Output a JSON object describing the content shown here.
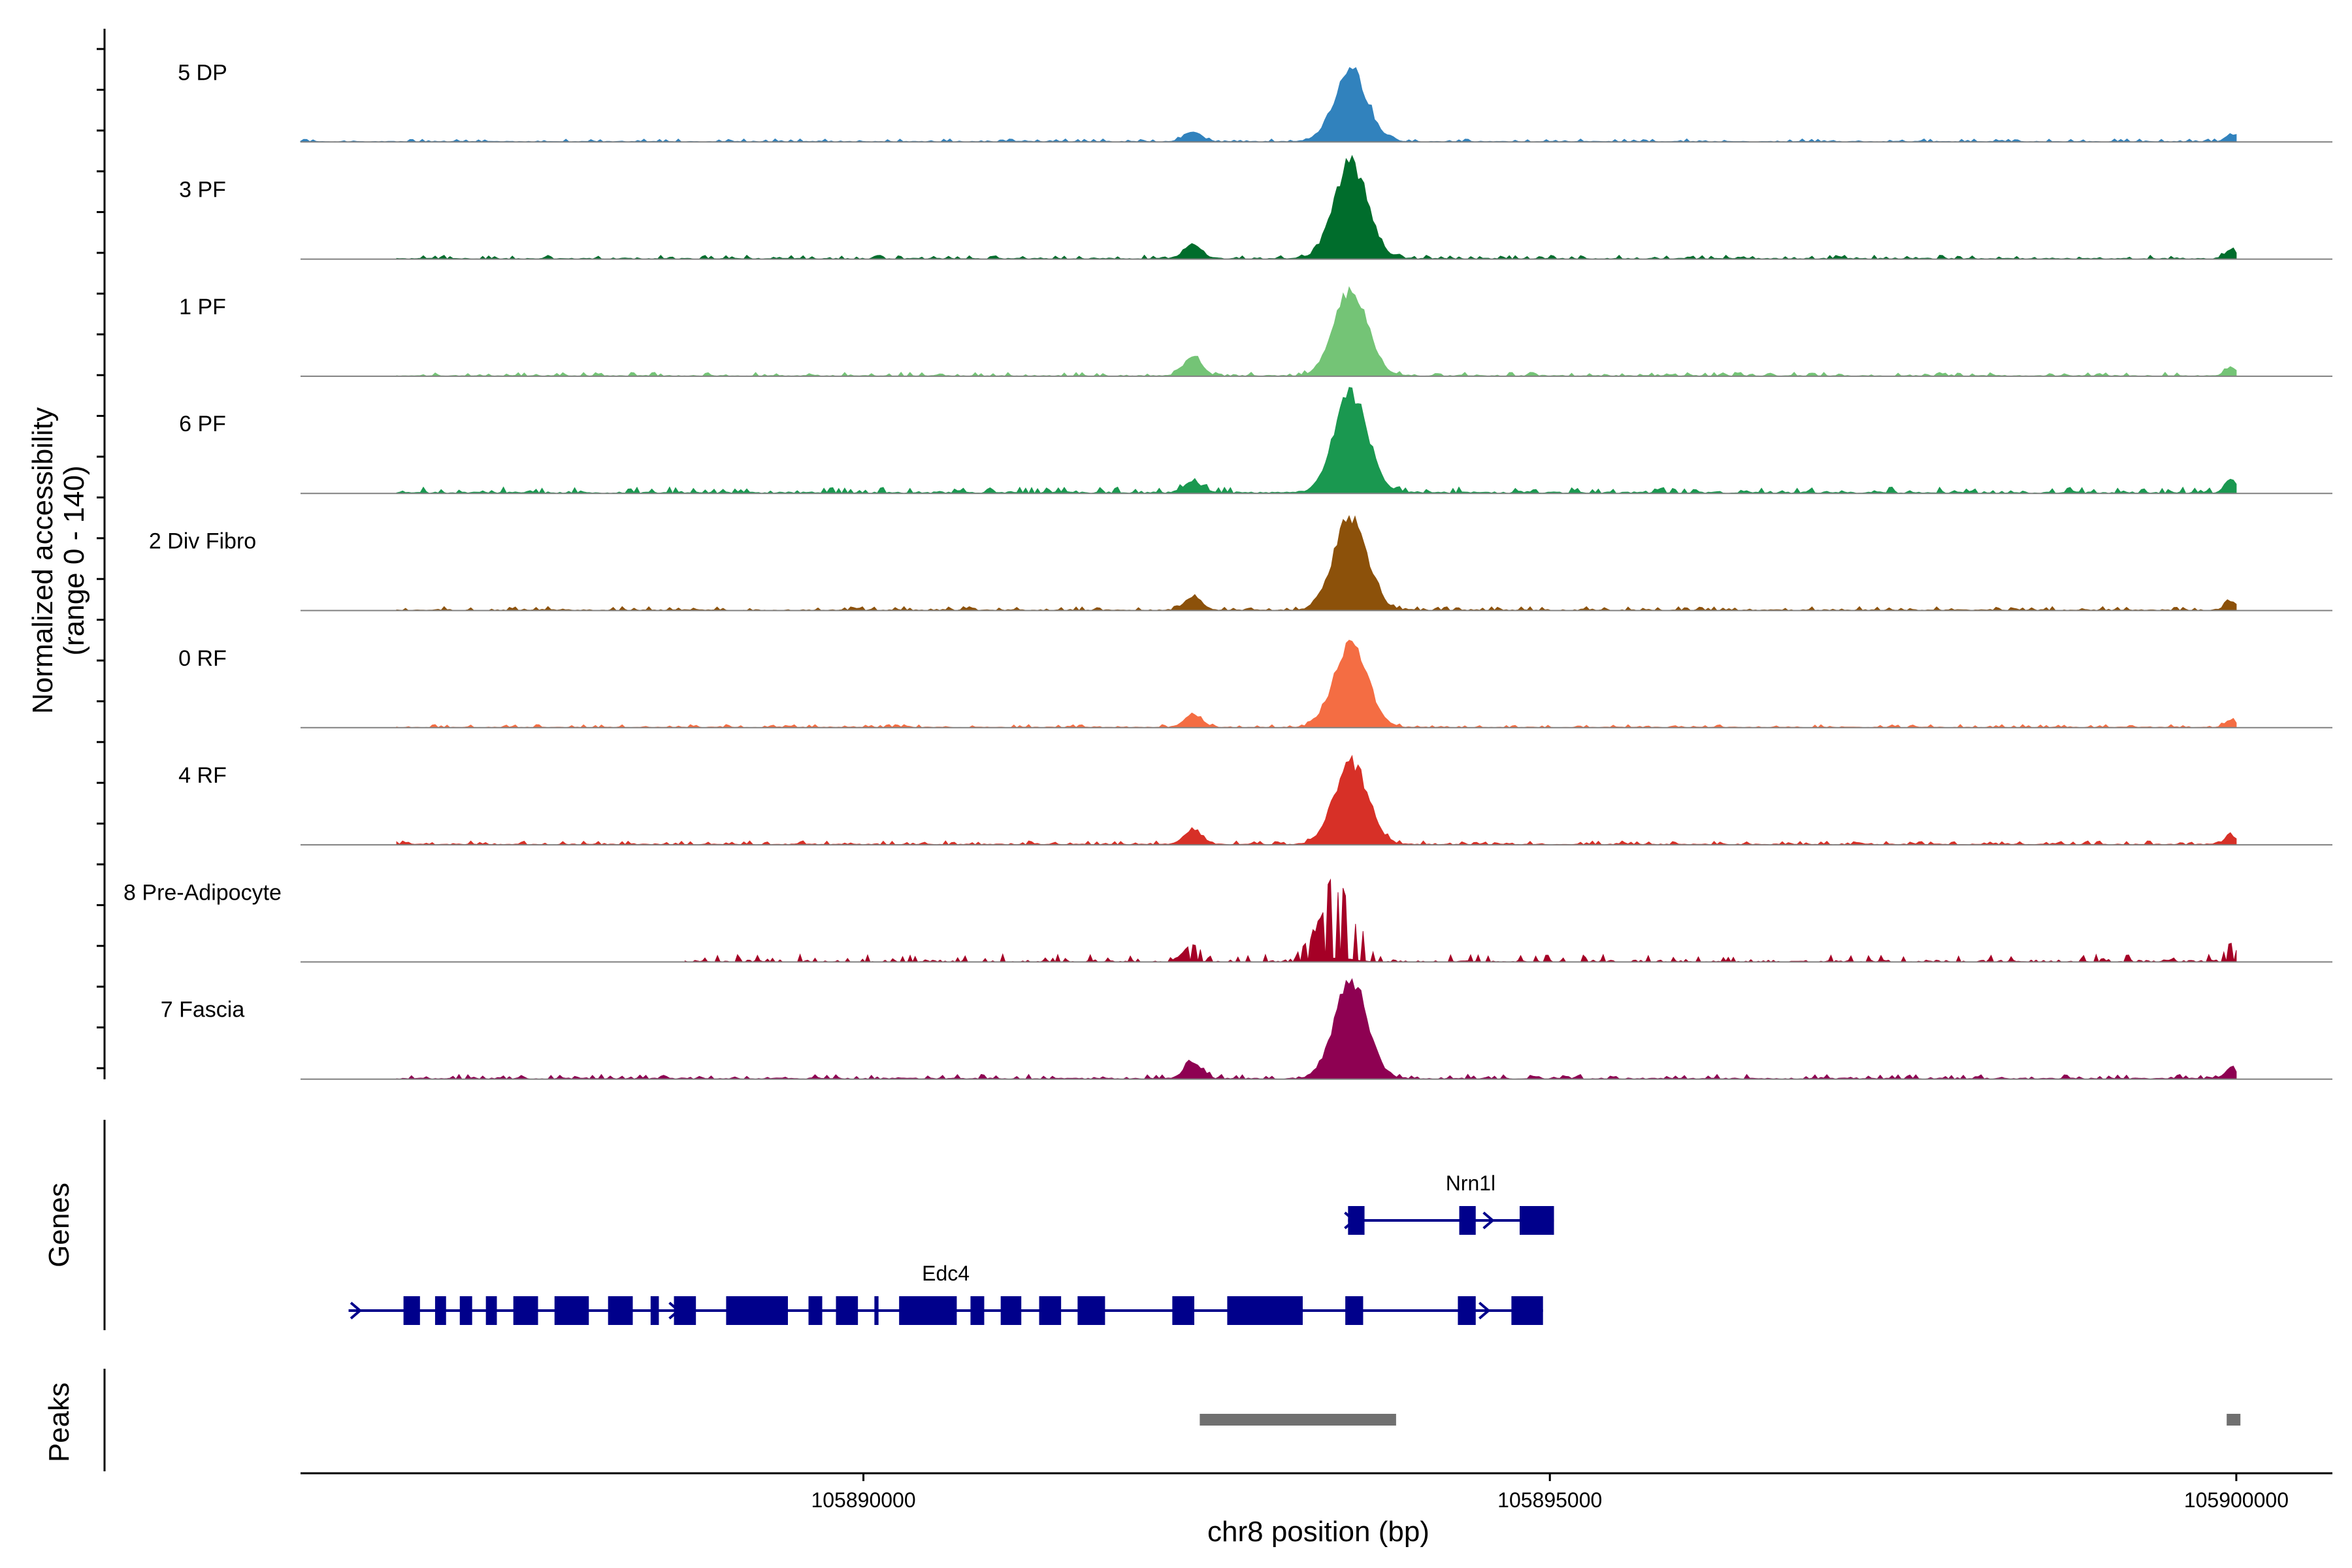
{
  "chart_data": {
    "type": "area",
    "title": "",
    "ylabel_line1": "Normalized accessibility",
    "ylabel_line2": "(range 0 - 140)",
    "ylim": [
      0,
      140
    ],
    "xlabel": "chr8 position (bp)",
    "xlim": [
      105885900,
      105900700
    ],
    "xticks": [
      105890000,
      105895000,
      105900000
    ],
    "xtick_labels": [
      "105890000",
      "105895000",
      "105900000"
    ],
    "track_labels": {
      "genes": "Genes",
      "peaks": "Peaks"
    },
    "series": [
      {
        "name": "5 DP",
        "color": "#3182bd",
        "start": 105885900,
        "end": 105900000,
        "peak_height": 95,
        "peak_center": 105893550,
        "flank_height": 12,
        "background": 4
      },
      {
        "name": "3 PF",
        "color": "#006d2c",
        "start": 105886600,
        "end": 105900000,
        "peak_height": 133,
        "peak_center": 105893550,
        "flank_height": 18,
        "background": 5
      },
      {
        "name": "1 PF",
        "color": "#74c476",
        "start": 105886600,
        "end": 105900000,
        "peak_height": 120,
        "peak_center": 105893550,
        "flank_height": 24,
        "background": 5
      },
      {
        "name": "6 PF",
        "color": "#1a9850",
        "start": 105886600,
        "end": 105900000,
        "peak_height": 140,
        "peak_center": 105893550,
        "flank_height": 14,
        "background": 8
      },
      {
        "name": "2 Div Fibro",
        "color": "#8c510a",
        "start": 105886600,
        "end": 105900000,
        "peak_height": 130,
        "peak_center": 105893550,
        "flank_height": 16,
        "background": 5
      },
      {
        "name": "0 RF",
        "color": "#f46d43",
        "start": 105886600,
        "end": 105900000,
        "peak_height": 120,
        "peak_center": 105893550,
        "flank_height": 16,
        "background": 4
      },
      {
        "name": "4 RF",
        "color": "#d73027",
        "start": 105886600,
        "end": 105900000,
        "peak_height": 115,
        "peak_center": 105893550,
        "flank_height": 18,
        "background": 5
      },
      {
        "name": "8 Pre-Adipocyte",
        "color": "#a50026",
        "start": 105888700,
        "end": 105900000,
        "peak_height": 105,
        "peak_center": 105893450,
        "flank_height": 20,
        "background": 10
      },
      {
        "name": "7 Fascia",
        "color": "#8e0152",
        "start": 105886600,
        "end": 105900000,
        "peak_height": 130,
        "peak_center": 105893550,
        "flank_height": 20,
        "background": 6
      }
    ],
    "genes": [
      {
        "name": "Nrn1l",
        "color": "#00008b",
        "start": 105893530,
        "end": 105895030,
        "strand": "+",
        "exons": [
          [
            105893530,
            105893650
          ],
          [
            105894340,
            105894460
          ],
          [
            105894780,
            105895030
          ]
        ],
        "arrows": [
          105893540,
          105894550
        ]
      },
      {
        "name": "Edc4",
        "color": "#00008b",
        "start": 105886250,
        "end": 105894950,
        "strand": "+",
        "exons": [
          [
            105886650,
            105886770
          ],
          [
            105886880,
            105886960
          ],
          [
            105887060,
            105887150
          ],
          [
            105887250,
            105887330
          ],
          [
            105887450,
            105887630
          ],
          [
            105887750,
            105888000
          ],
          [
            105888140,
            105888320
          ],
          [
            105888450,
            105888510
          ],
          [
            105888620,
            105888780
          ],
          [
            105889000,
            105889450
          ],
          [
            105889600,
            105889700
          ],
          [
            105889800,
            105889960
          ],
          [
            105890080,
            105890110
          ],
          [
            105890260,
            105890680
          ],
          [
            105890780,
            105890880
          ],
          [
            105891000,
            105891150
          ],
          [
            105891280,
            105891440
          ],
          [
            105891560,
            105891760
          ],
          [
            105892250,
            105892410
          ],
          [
            105892650,
            105893200
          ],
          [
            105893510,
            105893640
          ],
          [
            105894330,
            105894460
          ],
          [
            105894720,
            105894950
          ]
        ],
        "arrows": [
          105886300,
          105888620,
          105894520
        ]
      }
    ],
    "peaks": [
      {
        "start": 105892450,
        "end": 105893880,
        "color": "#707070"
      },
      {
        "start": 105899930,
        "end": 105900030,
        "color": "#707070"
      }
    ]
  }
}
